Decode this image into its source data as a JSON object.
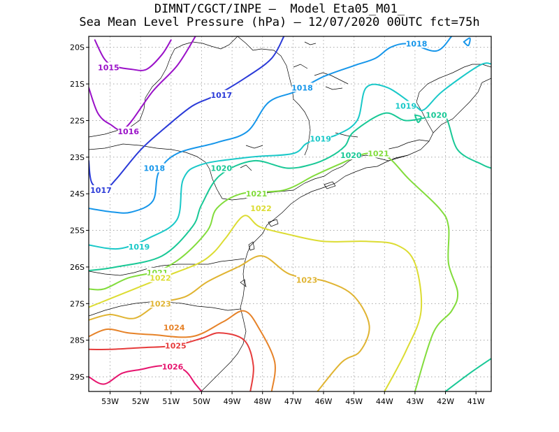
{
  "title": {
    "line1": "DIMNT/CGCT/INPE –  Model Eta05_M01_",
    "line2": "Sea Mean Level Pressure (hPa) – 12/07/2020 00UTC fct=75h"
  },
  "chart_data": {
    "type": "contour",
    "units": "hPa",
    "lon_range": [
      -53.7,
      -40.5
    ],
    "lat_range": [
      -29.4,
      -19.7
    ],
    "x_ticks": [
      "53W",
      "52W",
      "51W",
      "50W",
      "49W",
      "48W",
      "47W",
      "46W",
      "45W",
      "44W",
      "43W",
      "42W",
      "41W"
    ],
    "y_ticks": [
      "20S",
      "21S",
      "22S",
      "23S",
      "24S",
      "25S",
      "26S",
      "27S",
      "28S",
      "29S"
    ],
    "grid": "dotted",
    "contours": [
      {
        "level": "1015",
        "color": "#9a11c8",
        "points": [
          [
            -53.5,
            -19.8
          ],
          [
            -53.2,
            -20.3
          ],
          [
            -52.9,
            -20.5
          ],
          [
            -52.3,
            -20.6
          ],
          [
            -51.8,
            -20.6
          ],
          [
            -51.3,
            -20.2
          ],
          [
            -51.0,
            -19.8
          ]
        ],
        "labels": [
          {
            "text": "1015",
            "lon": -53.05,
            "lat": -20.55
          }
        ]
      },
      {
        "level": "1016",
        "color": "#9a11c8",
        "points": [
          [
            -53.7,
            -21.1
          ],
          [
            -53.4,
            -21.8
          ],
          [
            -53.0,
            -22.1
          ],
          [
            -52.5,
            -22.2
          ],
          [
            -51.6,
            -21.2
          ],
          [
            -50.8,
            -20.5
          ],
          [
            -50.2,
            -19.7
          ]
        ],
        "labels": [
          {
            "text": "1016",
            "lon": -52.4,
            "lat": -22.3
          }
        ]
      },
      {
        "level": "1017",
        "color": "#2a3ad8",
        "points": [
          [
            -53.7,
            -23.1
          ],
          [
            -53.6,
            -23.7
          ],
          [
            -53.2,
            -23.9
          ],
          [
            -52.8,
            -23.6
          ],
          [
            -52.0,
            -22.8
          ],
          [
            -51.2,
            -22.2
          ],
          [
            -50.3,
            -21.6
          ],
          [
            -49.5,
            -21.3
          ],
          [
            -48.5,
            -20.8
          ],
          [
            -47.7,
            -20.3
          ],
          [
            -47.3,
            -19.7
          ]
        ],
        "labels": [
          {
            "text": "1017",
            "lon": -53.3,
            "lat": -23.9
          },
          {
            "text": "1017",
            "lon": -49.35,
            "lat": -21.3
          }
        ]
      },
      {
        "level": "1018",
        "color": "#1696ea",
        "points": [
          [
            -53.7,
            -24.4
          ],
          [
            -52.9,
            -24.5
          ],
          [
            -52.3,
            -24.5
          ],
          [
            -51.6,
            -24.2
          ],
          [
            -51.4,
            -23.4
          ],
          [
            -50.8,
            -22.9
          ],
          [
            -49.5,
            -22.6
          ],
          [
            -48.5,
            -22.3
          ],
          [
            -47.8,
            -21.5
          ],
          [
            -46.9,
            -21.2
          ],
          [
            -46.0,
            -20.8
          ],
          [
            -45.0,
            -20.5
          ],
          [
            -44.3,
            -20.3
          ],
          [
            -43.8,
            -20.0
          ],
          [
            -43.2,
            -19.9
          ],
          [
            -42.3,
            -20.1
          ],
          [
            -41.8,
            -19.7
          ]
        ],
        "labels": [
          {
            "text": "1018",
            "lon": -46.7,
            "lat": -21.1
          },
          {
            "text": "1018",
            "lon": -51.55,
            "lat": -23.3
          },
          {
            "text": "1018",
            "lon": -42.95,
            "lat": -19.9
          }
        ]
      },
      {
        "level": "1018b",
        "color": "#1696ea",
        "points": [
          [
            -41.4,
            -19.85
          ],
          [
            -41.2,
            -19.75
          ],
          [
            -41.25,
            -19.95
          ],
          [
            -41.4,
            -19.85
          ]
        ],
        "labels": []
      },
      {
        "level": "1019",
        "color": "#19c8c8",
        "points": [
          [
            -53.7,
            -25.4
          ],
          [
            -52.7,
            -25.5
          ],
          [
            -51.7,
            -25.2
          ],
          [
            -50.8,
            -24.7
          ],
          [
            -50.6,
            -23.6
          ],
          [
            -50.0,
            -23.2
          ],
          [
            -48.4,
            -23.0
          ],
          [
            -47.0,
            -22.9
          ],
          [
            -46.5,
            -22.6
          ],
          [
            -45.6,
            -22.4
          ],
          [
            -44.9,
            -22.0
          ],
          [
            -44.6,
            -21.1
          ],
          [
            -43.9,
            -21.1
          ],
          [
            -43.0,
            -21.6
          ],
          [
            -42.7,
            -21.7
          ],
          [
            -42.1,
            -21.2
          ],
          [
            -40.9,
            -20.5
          ],
          [
            -40.5,
            -20.45
          ]
        ],
        "labels": [
          {
            "text": "1019",
            "lon": -52.05,
            "lat": -25.45
          },
          {
            "text": "1019",
            "lon": -46.1,
            "lat": -22.5
          },
          {
            "text": "1019",
            "lon": -43.3,
            "lat": -21.6
          }
        ]
      },
      {
        "level": "1020",
        "color": "#19c896",
        "points": [
          [
            -53.7,
            -26.1
          ],
          [
            -52.8,
            -26.0
          ],
          [
            -51.3,
            -25.7
          ],
          [
            -50.3,
            -24.9
          ],
          [
            -50.0,
            -24.3
          ],
          [
            -49.4,
            -23.5
          ],
          [
            -48.3,
            -23.1
          ],
          [
            -47.2,
            -23.3
          ],
          [
            -46.4,
            -23.2
          ],
          [
            -45.8,
            -23.0
          ],
          [
            -45.3,
            -22.7
          ],
          [
            -45.0,
            -22.3
          ],
          [
            -44.0,
            -21.8
          ],
          [
            -43.3,
            -22.0
          ],
          [
            -42.5,
            -21.9
          ],
          [
            -42.0,
            -21.9
          ],
          [
            -41.6,
            -22.8
          ],
          [
            -40.8,
            -23.2
          ],
          [
            -40.5,
            -23.3
          ]
        ],
        "labels": [
          {
            "text": "1020",
            "lon": -49.35,
            "lat": -23.3
          },
          {
            "text": "1020",
            "lon": -45.1,
            "lat": -22.95
          },
          {
            "text": "1020",
            "lon": -42.3,
            "lat": -21.85
          }
        ]
      },
      {
        "level": "1020b",
        "color": "#19c896",
        "points": [
          [
            -43.0,
            -21.85
          ],
          [
            -42.9,
            -22.05
          ],
          [
            -42.8,
            -21.9
          ],
          [
            -43.0,
            -21.85
          ]
        ],
        "labels": []
      },
      {
        "level": "1021",
        "color": "#82dc3c",
        "points": [
          [
            -53.7,
            -26.6
          ],
          [
            -53.2,
            -26.6
          ],
          [
            -52.4,
            -26.3
          ],
          [
            -51.4,
            -26.1
          ],
          [
            -50.6,
            -25.7
          ],
          [
            -49.8,
            -25.0
          ],
          [
            -49.5,
            -24.4
          ],
          [
            -48.7,
            -24.0
          ],
          [
            -47.3,
            -23.9
          ],
          [
            -46.3,
            -23.5
          ],
          [
            -45.5,
            -23.2
          ],
          [
            -44.6,
            -22.9
          ],
          [
            -43.9,
            -23.0
          ],
          [
            -43.2,
            -23.6
          ],
          [
            -42.2,
            -24.4
          ],
          [
            -41.9,
            -24.9
          ],
          [
            -41.9,
            -25.9
          ],
          [
            -41.6,
            -26.7
          ],
          [
            -41.8,
            -27.2
          ],
          [
            -42.4,
            -27.8
          ],
          [
            -43.0,
            -29.4
          ]
        ],
        "labels": [
          {
            "text": "1021",
            "lon": -48.2,
            "lat": -24.0
          },
          {
            "text": "1021",
            "lon": -51.45,
            "lat": -26.15
          },
          {
            "text": "1021",
            "lon": -44.2,
            "lat": -22.9
          }
        ]
      },
      {
        "level": "1022",
        "color": "#dcdc32",
        "points": [
          [
            -53.7,
            -27.1
          ],
          [
            -53.1,
            -26.9
          ],
          [
            -52.5,
            -26.7
          ],
          [
            -51.9,
            -26.5
          ],
          [
            -51.0,
            -26.2
          ],
          [
            -50.1,
            -25.9
          ],
          [
            -49.6,
            -25.6
          ],
          [
            -49.2,
            -25.2
          ],
          [
            -48.6,
            -24.6
          ],
          [
            -48.1,
            -24.9
          ],
          [
            -47.2,
            -25.1
          ],
          [
            -46.0,
            -25.3
          ],
          [
            -44.6,
            -25.3
          ],
          [
            -43.6,
            -25.4
          ],
          [
            -43.0,
            -25.9
          ],
          [
            -42.8,
            -27.2
          ],
          [
            -43.3,
            -28.3
          ],
          [
            -44.0,
            -29.4
          ]
        ],
        "labels": [
          {
            "text": "1022",
            "lon": -48.05,
            "lat": -24.4
          },
          {
            "text": "1022",
            "lon": -51.35,
            "lat": -26.3
          }
        ]
      },
      {
        "level": "1023",
        "color": "#e0b432",
        "points": [
          [
            -53.7,
            -27.45
          ],
          [
            -53.0,
            -27.3
          ],
          [
            -52.2,
            -27.4
          ],
          [
            -51.4,
            -27.0
          ],
          [
            -50.5,
            -26.8
          ],
          [
            -49.8,
            -26.4
          ],
          [
            -48.8,
            -26.0
          ],
          [
            -48.0,
            -25.7
          ],
          [
            -47.1,
            -26.2
          ],
          [
            -45.9,
            -26.4
          ],
          [
            -45.0,
            -26.8
          ],
          [
            -44.5,
            -27.6
          ],
          [
            -44.8,
            -28.3
          ],
          [
            -45.4,
            -28.6
          ],
          [
            -46.2,
            -29.4
          ]
        ],
        "labels": [
          {
            "text": "1023",
            "lon": -51.35,
            "lat": -27.0
          },
          {
            "text": "1023",
            "lon": -46.55,
            "lat": -26.35
          }
        ]
      },
      {
        "level": "1024",
        "color": "#e68228",
        "points": [
          [
            -53.7,
            -27.9
          ],
          [
            -53.1,
            -27.7
          ],
          [
            -52.4,
            -27.8
          ],
          [
            -51.6,
            -27.85
          ],
          [
            -50.3,
            -27.9
          ],
          [
            -49.3,
            -27.5
          ],
          [
            -48.6,
            -27.2
          ],
          [
            -48.1,
            -27.7
          ],
          [
            -47.6,
            -28.6
          ],
          [
            -47.7,
            -29.4
          ]
        ],
        "labels": [
          {
            "text": "1024",
            "lon": -50.9,
            "lat": -27.65
          }
        ]
      },
      {
        "level": "1025",
        "color": "#e63c3c",
        "points": [
          [
            -53.7,
            -28.25
          ],
          [
            -53.0,
            -28.25
          ],
          [
            -51.9,
            -28.2
          ],
          [
            -50.9,
            -28.15
          ],
          [
            -50.0,
            -27.95
          ],
          [
            -49.4,
            -27.8
          ],
          [
            -48.6,
            -28.0
          ],
          [
            -48.3,
            -28.7
          ],
          [
            -48.4,
            -29.4
          ]
        ],
        "labels": [
          {
            "text": "1025",
            "lon": -50.85,
            "lat": -28.15
          }
        ]
      },
      {
        "level": "1026",
        "color": "#e6146e",
        "points": [
          [
            -53.7,
            -29.0
          ],
          [
            -53.2,
            -29.2
          ],
          [
            -52.6,
            -28.9
          ],
          [
            -52.0,
            -28.8
          ],
          [
            -51.3,
            -28.7
          ],
          [
            -50.6,
            -28.8
          ],
          [
            -50.2,
            -29.2
          ],
          [
            -50.0,
            -29.4
          ]
        ],
        "labels": [
          {
            "text": "1026",
            "lon": -50.95,
            "lat": -28.72
          }
        ]
      },
      {
        "level": "1021e",
        "color": "#19c896",
        "points": [
          [
            -42.0,
            -29.4
          ],
          [
            -41.2,
            -28.9
          ],
          [
            -40.5,
            -28.5
          ]
        ],
        "labels": []
      }
    ]
  }
}
